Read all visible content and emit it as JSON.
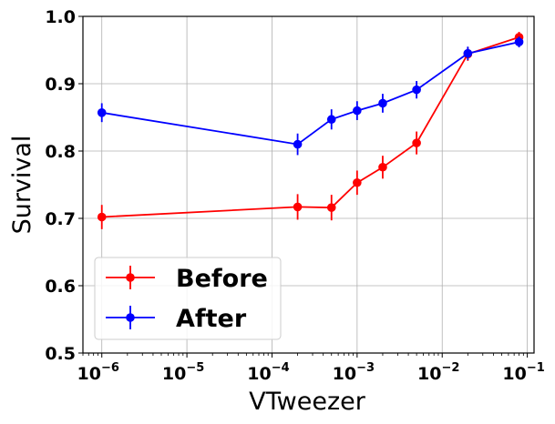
{
  "chart_data": {
    "type": "line",
    "xlabel": "VTweezer",
    "ylabel": "Survival",
    "xscale": "log",
    "xlim": [
      6e-07,
      0.12
    ],
    "ylim": [
      0.5,
      1.0
    ],
    "x_ticks": [
      {
        "value": 1e-06,
        "base": "10",
        "exp": "−6"
      },
      {
        "value": 1e-05,
        "base": "10",
        "exp": "−5"
      },
      {
        "value": 0.0001,
        "base": "10",
        "exp": "−4"
      },
      {
        "value": 0.001,
        "base": "10",
        "exp": "−3"
      },
      {
        "value": 0.01,
        "base": "10",
        "exp": "−2"
      },
      {
        "value": 0.1,
        "base": "10",
        "exp": "−1"
      }
    ],
    "y_ticks": [
      {
        "value": 0.5,
        "label": "0.5"
      },
      {
        "value": 0.6,
        "label": "0.6"
      },
      {
        "value": 0.7,
        "label": "0.7"
      },
      {
        "value": 0.8,
        "label": "0.8"
      },
      {
        "value": 0.9,
        "label": "0.9"
      },
      {
        "value": 1.0,
        "label": "1.0"
      }
    ],
    "grid": true,
    "legend_position": "lower-left",
    "series": [
      {
        "name": "Before",
        "color": "#ff0000",
        "marker": "circle",
        "x": [
          1e-06,
          0.0002,
          0.0005,
          0.001,
          0.002,
          0.005,
          0.02,
          0.08
        ],
        "y": [
          0.702,
          0.717,
          0.716,
          0.753,
          0.776,
          0.812,
          0.944,
          0.969
        ],
        "yerr": [
          0.018,
          0.019,
          0.019,
          0.018,
          0.017,
          0.017,
          0.01,
          0.008
        ]
      },
      {
        "name": "After",
        "color": "#0000ff",
        "marker": "circle",
        "x": [
          1e-06,
          0.0002,
          0.0005,
          0.001,
          0.002,
          0.005,
          0.02,
          0.08
        ],
        "y": [
          0.857,
          0.81,
          0.847,
          0.86,
          0.871,
          0.891,
          0.945,
          0.962
        ],
        "yerr": [
          0.014,
          0.016,
          0.015,
          0.014,
          0.014,
          0.013,
          0.01,
          0.008
        ]
      }
    ]
  }
}
